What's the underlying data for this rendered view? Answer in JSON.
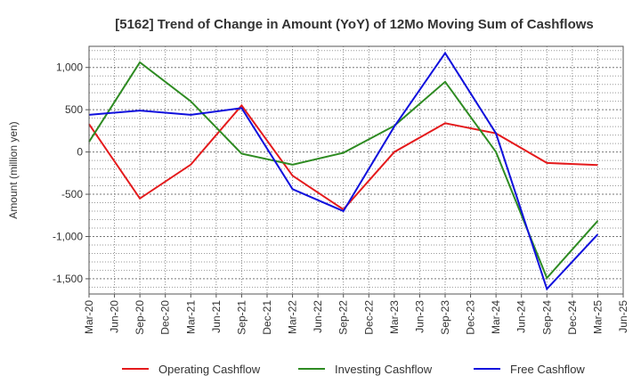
{
  "chart_data": {
    "type": "line",
    "title": "[5162]  Trend of Change in Amount (YoY) of 12Mo Moving Sum of Cashflows",
    "xlabel": "",
    "ylabel": "Amount (million yen)",
    "ylim": [
      -1680,
      1250
    ],
    "yticks": [
      1000,
      500,
      0,
      -500,
      -1000,
      -1500
    ],
    "ytick_labels": [
      "1,000",
      "500",
      "0",
      "-500",
      "-1,000",
      "-1,500"
    ],
    "categories": [
      "Mar-20",
      "Jun-20",
      "Sep-20",
      "Dec-20",
      "Mar-21",
      "Jun-21",
      "Sep-21",
      "Dec-21",
      "Mar-22",
      "Jun-22",
      "Sep-22",
      "Dec-22",
      "Mar-23",
      "Jun-23",
      "Sep-23",
      "Dec-23",
      "Mar-24",
      "Jun-24",
      "Sep-24",
      "Dec-24",
      "Mar-25",
      "Jun-25"
    ],
    "grid": true,
    "legend_position": "bottom",
    "series": [
      {
        "name": "Operating Cashflow",
        "color": "#e41a1c",
        "points": [
          [
            0,
            330
          ],
          [
            2,
            -550
          ],
          [
            4,
            -150
          ],
          [
            6,
            550
          ],
          [
            8,
            -280
          ],
          [
            10,
            -680
          ],
          [
            12,
            0
          ],
          [
            14,
            340
          ],
          [
            16,
            220
          ],
          [
            18,
            -130
          ],
          [
            20,
            -155
          ]
        ]
      },
      {
        "name": "Investing Cashflow",
        "color": "#2e8b22",
        "points": [
          [
            0,
            120
          ],
          [
            2,
            1060
          ],
          [
            4,
            600
          ],
          [
            6,
            -20
          ],
          [
            8,
            -150
          ],
          [
            10,
            -10
          ],
          [
            12,
            310
          ],
          [
            14,
            830
          ],
          [
            16,
            0
          ],
          [
            18,
            -1490
          ],
          [
            20,
            -815
          ]
        ]
      },
      {
        "name": "Free Cashflow",
        "color": "#1010dd",
        "points": [
          [
            0,
            440
          ],
          [
            2,
            490
          ],
          [
            4,
            440
          ],
          [
            6,
            520
          ],
          [
            8,
            -440
          ],
          [
            10,
            -700
          ],
          [
            12,
            300
          ],
          [
            14,
            1170
          ],
          [
            16,
            220
          ],
          [
            18,
            -1620
          ],
          [
            20,
            -975
          ]
        ]
      }
    ]
  }
}
